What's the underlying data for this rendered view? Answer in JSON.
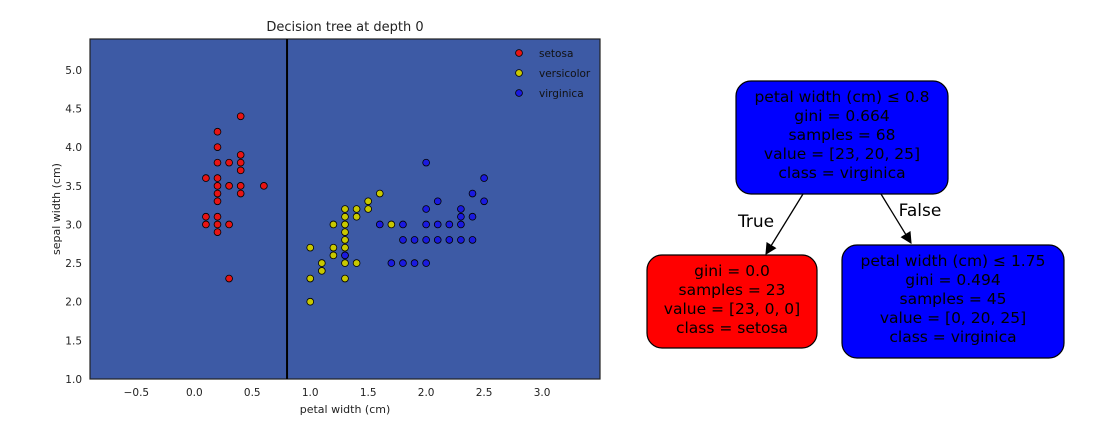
{
  "chart_data": {
    "type": "scatter",
    "title": "Decision tree at depth 0",
    "xlabel": "petal width (cm)",
    "ylabel": "sepal width (cm)",
    "xlim": [
      -0.9,
      3.5
    ],
    "ylim": [
      1.0,
      5.4
    ],
    "x_ticks": [
      -0.5,
      0.0,
      0.5,
      1.0,
      1.5,
      2.0,
      2.5,
      3.0
    ],
    "x_tick_labels": [
      "−0.5",
      "0.0",
      "0.5",
      "1.0",
      "1.5",
      "2.0",
      "2.5",
      "3.0"
    ],
    "y_ticks": [
      1.0,
      1.5,
      2.0,
      2.5,
      3.0,
      3.5,
      4.0,
      4.5,
      5.0
    ],
    "y_tick_labels": [
      "1.0",
      "1.5",
      "2.0",
      "2.5",
      "3.0",
      "3.5",
      "4.0",
      "4.5",
      "5.0"
    ],
    "background_color": "#3d5aa5",
    "decision_boundary_x": 0.8,
    "legend_position": "top-right",
    "grid": false,
    "series": [
      {
        "name": "setosa",
        "color": "#e81414",
        "points": [
          [
            0.2,
            4.2
          ],
          [
            0.4,
            4.4
          ],
          [
            0.2,
            4.0
          ],
          [
            0.4,
            3.9
          ],
          [
            0.2,
            3.8
          ],
          [
            0.3,
            3.8
          ],
          [
            0.4,
            3.8
          ],
          [
            0.1,
            3.6
          ],
          [
            0.2,
            3.6
          ],
          [
            0.4,
            3.7
          ],
          [
            0.2,
            3.5
          ],
          [
            0.3,
            3.5
          ],
          [
            0.4,
            3.5
          ],
          [
            0.6,
            3.5
          ],
          [
            0.2,
            3.4
          ],
          [
            0.4,
            3.4
          ],
          [
            0.2,
            3.3
          ],
          [
            0.1,
            3.1
          ],
          [
            0.2,
            3.1
          ],
          [
            0.1,
            3.0
          ],
          [
            0.2,
            3.0
          ],
          [
            0.3,
            3.0
          ],
          [
            0.2,
            2.9
          ],
          [
            0.3,
            2.3
          ]
        ]
      },
      {
        "name": "versicolor",
        "color": "#c8c800",
        "points": [
          [
            1.0,
            2.0
          ],
          [
            1.0,
            2.3
          ],
          [
            1.0,
            2.7
          ],
          [
            1.1,
            2.5
          ],
          [
            1.1,
            2.4
          ],
          [
            1.2,
            2.7
          ],
          [
            1.2,
            2.6
          ],
          [
            1.2,
            3.0
          ],
          [
            1.3,
            2.3
          ],
          [
            1.3,
            2.5
          ],
          [
            1.3,
            2.6
          ],
          [
            1.3,
            2.7
          ],
          [
            1.3,
            2.8
          ],
          [
            1.3,
            2.9
          ],
          [
            1.3,
            3.0
          ],
          [
            1.3,
            3.1
          ],
          [
            1.3,
            3.2
          ],
          [
            1.4,
            3.1
          ],
          [
            1.4,
            3.2
          ],
          [
            1.4,
            2.5
          ],
          [
            1.5,
            3.2
          ],
          [
            1.5,
            3.3
          ],
          [
            1.6,
            3.4
          ],
          [
            1.7,
            3.0
          ]
        ]
      },
      {
        "name": "virginica",
        "color": "#1a1ae0",
        "points": [
          [
            1.3,
            2.6
          ],
          [
            1.6,
            3.0
          ],
          [
            1.7,
            2.5
          ],
          [
            1.8,
            2.5
          ],
          [
            1.8,
            3.0
          ],
          [
            1.8,
            2.8
          ],
          [
            1.9,
            2.5
          ],
          [
            1.9,
            2.8
          ],
          [
            2.0,
            2.5
          ],
          [
            2.0,
            2.8
          ],
          [
            2.0,
            3.0
          ],
          [
            2.0,
            3.2
          ],
          [
            2.0,
            3.8
          ],
          [
            2.1,
            2.8
          ],
          [
            2.1,
            3.0
          ],
          [
            2.1,
            3.3
          ],
          [
            2.2,
            2.8
          ],
          [
            2.2,
            3.0
          ],
          [
            2.3,
            2.8
          ],
          [
            2.3,
            3.0
          ],
          [
            2.3,
            3.1
          ],
          [
            2.3,
            3.2
          ],
          [
            2.4,
            2.8
          ],
          [
            2.4,
            3.1
          ],
          [
            2.4,
            3.4
          ],
          [
            2.5,
            3.3
          ],
          [
            2.5,
            3.6
          ]
        ]
      }
    ]
  },
  "tree": {
    "root": {
      "fill": "#0000ff",
      "lines": [
        "petal width (cm) ≤ 0.8",
        "gini = 0.664",
        "samples = 68",
        "value = [23, 20, 25]",
        "class = virginica"
      ]
    },
    "left": {
      "fill": "#ff0000",
      "lines": [
        "gini = 0.0",
        "samples = 23",
        "value = [23, 0, 0]",
        "class = setosa"
      ]
    },
    "right": {
      "fill": "#0000ff",
      "lines": [
        "petal width (cm) ≤ 1.75",
        "gini = 0.494",
        "samples = 45",
        "value = [0, 20, 25]",
        "class = virginica"
      ]
    },
    "edge_true_label": "True",
    "edge_false_label": "False"
  }
}
